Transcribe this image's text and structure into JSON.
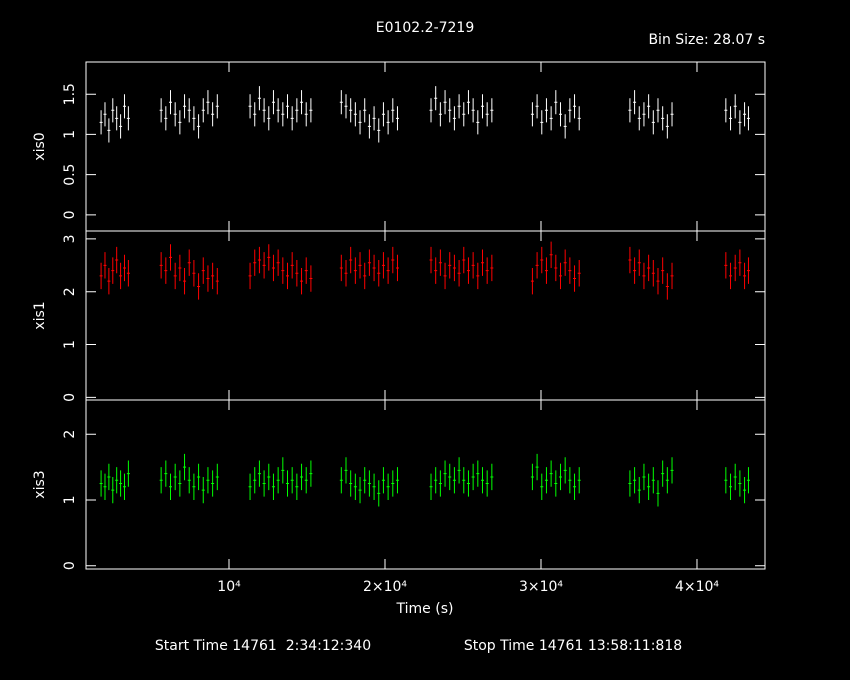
{
  "chart_data": [
    {
      "type": "errorbar",
      "title": "E0102.2-7219",
      "subtitle": "Bin Size: 28.07 s",
      "y_label": "xis0",
      "color": "#ffffff",
      "xlim": [
        833,
        44360
      ],
      "xticks": [
        10000,
        20000,
        30000,
        40000
      ],
      "ylim": [
        -0.2,
        1.9
      ],
      "yticks": [
        0,
        0.5,
        1,
        1.5
      ],
      "yerr": 0.15,
      "x": [
        1800,
        2050,
        2300,
        2550,
        2800,
        3050,
        3300,
        3550,
        5650,
        5950,
        6250,
        6550,
        6850,
        7150,
        7450,
        7750,
        8050,
        8350,
        8650,
        8950,
        9250,
        11350,
        11650,
        11950,
        12250,
        12550,
        12850,
        13150,
        13450,
        13750,
        14050,
        14350,
        14650,
        14950,
        15250,
        17200,
        17500,
        17800,
        18100,
        18400,
        18700,
        19000,
        19300,
        19600,
        19900,
        20200,
        20500,
        20800,
        22950,
        23250,
        23550,
        23850,
        24150,
        24450,
        24750,
        25050,
        25350,
        25650,
        25950,
        26250,
        26550,
        26850,
        29450,
        29750,
        30050,
        30350,
        30650,
        30950,
        31250,
        31550,
        31850,
        32150,
        32450,
        35700,
        36000,
        36300,
        36600,
        36900,
        37200,
        37500,
        37800,
        38100,
        38400,
        41850,
        42150,
        42450,
        42750,
        43050,
        43300
      ],
      "values": [
        1.15,
        1.25,
        1.05,
        1.3,
        1.2,
        1.1,
        1.35,
        1.2,
        1.3,
        1.2,
        1.4,
        1.25,
        1.15,
        1.35,
        1.3,
        1.2,
        1.1,
        1.3,
        1.4,
        1.25,
        1.35,
        1.35,
        1.25,
        1.45,
        1.3,
        1.2,
        1.4,
        1.3,
        1.25,
        1.35,
        1.2,
        1.3,
        1.4,
        1.25,
        1.3,
        1.4,
        1.35,
        1.3,
        1.25,
        1.15,
        1.3,
        1.1,
        1.2,
        1.05,
        1.25,
        1.15,
        1.3,
        1.2,
        1.3,
        1.45,
        1.25,
        1.4,
        1.3,
        1.2,
        1.35,
        1.25,
        1.4,
        1.3,
        1.15,
        1.35,
        1.25,
        1.3,
        1.25,
        1.35,
        1.15,
        1.3,
        1.2,
        1.4,
        1.25,
        1.1,
        1.3,
        1.35,
        1.2,
        1.3,
        1.4,
        1.2,
        1.25,
        1.35,
        1.15,
        1.3,
        1.2,
        1.1,
        1.25,
        1.3,
        1.2,
        1.35,
        1.15,
        1.25,
        1.2
      ]
    },
    {
      "type": "errorbar",
      "y_label": "xis1",
      "color": "#ff0000",
      "xlim": [
        833,
        44360
      ],
      "xticks": [
        10000,
        20000,
        30000,
        40000
      ],
      "ylim": [
        -0.05,
        3.15
      ],
      "yticks": [
        0,
        1,
        2,
        3
      ],
      "yerr": 0.25,
      "x": [
        1800,
        2050,
        2300,
        2550,
        2800,
        3050,
        3300,
        3550,
        5650,
        5950,
        6250,
        6550,
        6850,
        7150,
        7450,
        7750,
        8050,
        8350,
        8650,
        8950,
        9250,
        11350,
        11650,
        11950,
        12250,
        12550,
        12850,
        13150,
        13450,
        13750,
        14050,
        14350,
        14650,
        14950,
        15250,
        17200,
        17500,
        17800,
        18100,
        18400,
        18700,
        19000,
        19300,
        19600,
        19900,
        20200,
        20500,
        20800,
        22950,
        23250,
        23550,
        23850,
        24150,
        24450,
        24750,
        25050,
        25350,
        25650,
        25950,
        26250,
        26550,
        26850,
        29450,
        29750,
        30050,
        30350,
        30650,
        30950,
        31250,
        31550,
        31850,
        32150,
        32450,
        35700,
        36000,
        36300,
        36600,
        36900,
        37200,
        37500,
        37800,
        38100,
        38400,
        41850,
        42150,
        42450,
        42750,
        43050,
        43300
      ],
      "values": [
        2.3,
        2.5,
        2.2,
        2.4,
        2.6,
        2.3,
        2.45,
        2.35,
        2.5,
        2.4,
        2.65,
        2.3,
        2.45,
        2.2,
        2.55,
        2.35,
        2.1,
        2.4,
        2.25,
        2.3,
        2.2,
        2.3,
        2.55,
        2.6,
        2.5,
        2.65,
        2.45,
        2.55,
        2.4,
        2.3,
        2.5,
        2.35,
        2.2,
        2.4,
        2.25,
        2.45,
        2.35,
        2.6,
        2.4,
        2.5,
        2.3,
        2.55,
        2.45,
        2.35,
        2.5,
        2.4,
        2.6,
        2.45,
        2.6,
        2.4,
        2.55,
        2.3,
        2.5,
        2.45,
        2.35,
        2.6,
        2.4,
        2.5,
        2.3,
        2.55,
        2.4,
        2.45,
        2.2,
        2.5,
        2.6,
        2.4,
        2.7,
        2.45,
        2.3,
        2.55,
        2.4,
        2.25,
        2.35,
        2.6,
        2.4,
        2.55,
        2.3,
        2.45,
        2.35,
        2.2,
        2.4,
        2.1,
        2.3,
        2.5,
        2.3,
        2.45,
        2.55,
        2.3,
        2.4
      ]
    },
    {
      "type": "errorbar",
      "y_label": "xis3",
      "color": "#00ff00",
      "x_label": "Time (s)",
      "annotations": [
        "Start Time 14761  2:34:12:340",
        "Stop Time 14761 13:58:11:818"
      ],
      "xlim": [
        833,
        44360
      ],
      "xticks": [
        {
          "value": 10000,
          "label": "10⁴"
        },
        {
          "value": 20000,
          "label": "2×10⁴"
        },
        {
          "value": 30000,
          "label": "3×10⁴"
        },
        {
          "value": 40000,
          "label": "4×10⁴"
        }
      ],
      "ylim": [
        -0.05,
        2.52
      ],
      "yticks": [
        0,
        1,
        2
      ],
      "yerr": 0.2,
      "x": [
        1800,
        2050,
        2300,
        2550,
        2800,
        3050,
        3300,
        3550,
        5650,
        5950,
        6250,
        6550,
        6850,
        7150,
        7450,
        7750,
        8050,
        8350,
        8650,
        8950,
        9250,
        11350,
        11650,
        11950,
        12250,
        12550,
        12850,
        13150,
        13450,
        13750,
        14050,
        14350,
        14650,
        14950,
        15250,
        17200,
        17500,
        17800,
        18100,
        18400,
        18700,
        19000,
        19300,
        19600,
        19900,
        20200,
        20500,
        20800,
        22950,
        23250,
        23550,
        23850,
        24150,
        24450,
        24750,
        25050,
        25350,
        25650,
        25950,
        26250,
        26550,
        26850,
        29450,
        29750,
        30050,
        30350,
        30650,
        30950,
        31250,
        31550,
        31850,
        32150,
        32450,
        35700,
        36000,
        36300,
        36600,
        36900,
        37200,
        37500,
        37800,
        38100,
        38400,
        41850,
        42150,
        42450,
        42750,
        43050,
        43300
      ],
      "values": [
        1.25,
        1.2,
        1.35,
        1.15,
        1.3,
        1.25,
        1.2,
        1.4,
        1.3,
        1.4,
        1.2,
        1.35,
        1.25,
        1.5,
        1.3,
        1.2,
        1.35,
        1.15,
        1.3,
        1.25,
        1.35,
        1.2,
        1.3,
        1.4,
        1.25,
        1.35,
        1.2,
        1.3,
        1.45,
        1.25,
        1.3,
        1.2,
        1.35,
        1.3,
        1.4,
        1.3,
        1.45,
        1.25,
        1.2,
        1.15,
        1.3,
        1.25,
        1.2,
        1.1,
        1.3,
        1.2,
        1.25,
        1.3,
        1.2,
        1.3,
        1.25,
        1.4,
        1.35,
        1.3,
        1.45,
        1.3,
        1.25,
        1.35,
        1.4,
        1.3,
        1.25,
        1.35,
        1.35,
        1.5,
        1.2,
        1.3,
        1.4,
        1.25,
        1.35,
        1.45,
        1.3,
        1.2,
        1.3,
        1.25,
        1.3,
        1.15,
        1.35,
        1.2,
        1.3,
        1.1,
        1.4,
        1.3,
        1.45,
        1.3,
        1.2,
        1.35,
        1.25,
        1.15,
        1.3
      ]
    }
  ]
}
